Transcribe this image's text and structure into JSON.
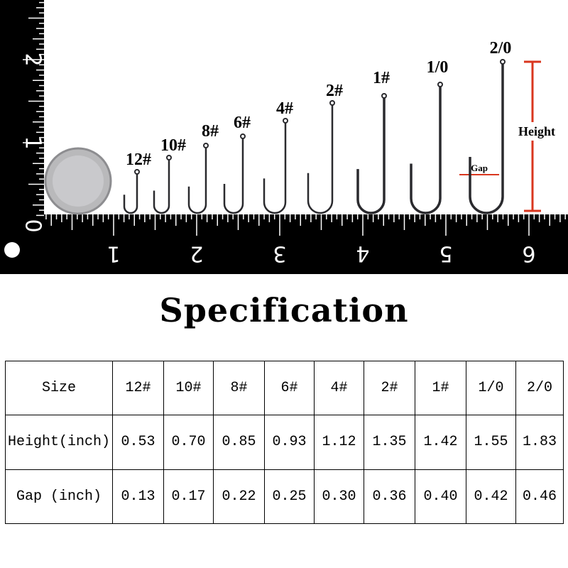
{
  "photo": {
    "hook_labels": [
      "12#",
      "10#",
      "8#",
      "6#",
      "4#",
      "2#",
      "1#",
      "1/0",
      "2/0"
    ],
    "height_label": "Height",
    "gap_label": "Gap",
    "ruler_x": [
      "1",
      "2",
      "3",
      "4",
      "5",
      "6"
    ],
    "ruler_y": [
      "0",
      "1",
      "2"
    ]
  },
  "title": "Specification",
  "table": {
    "rows": [
      [
        "Size",
        "12#",
        "10#",
        "8#",
        "6#",
        "4#",
        "2#",
        "1#",
        "1/0",
        "2/0"
      ],
      [
        "Height(inch)",
        "0.53",
        "0.70",
        "0.85",
        "0.93",
        "1.12",
        "1.35",
        "1.42",
        "1.55",
        "1.83"
      ],
      [
        "Gap (inch)",
        "0.13",
        "0.17",
        "0.22",
        "0.25",
        "0.30",
        "0.36",
        "0.40",
        "0.42",
        "0.46"
      ]
    ]
  }
}
